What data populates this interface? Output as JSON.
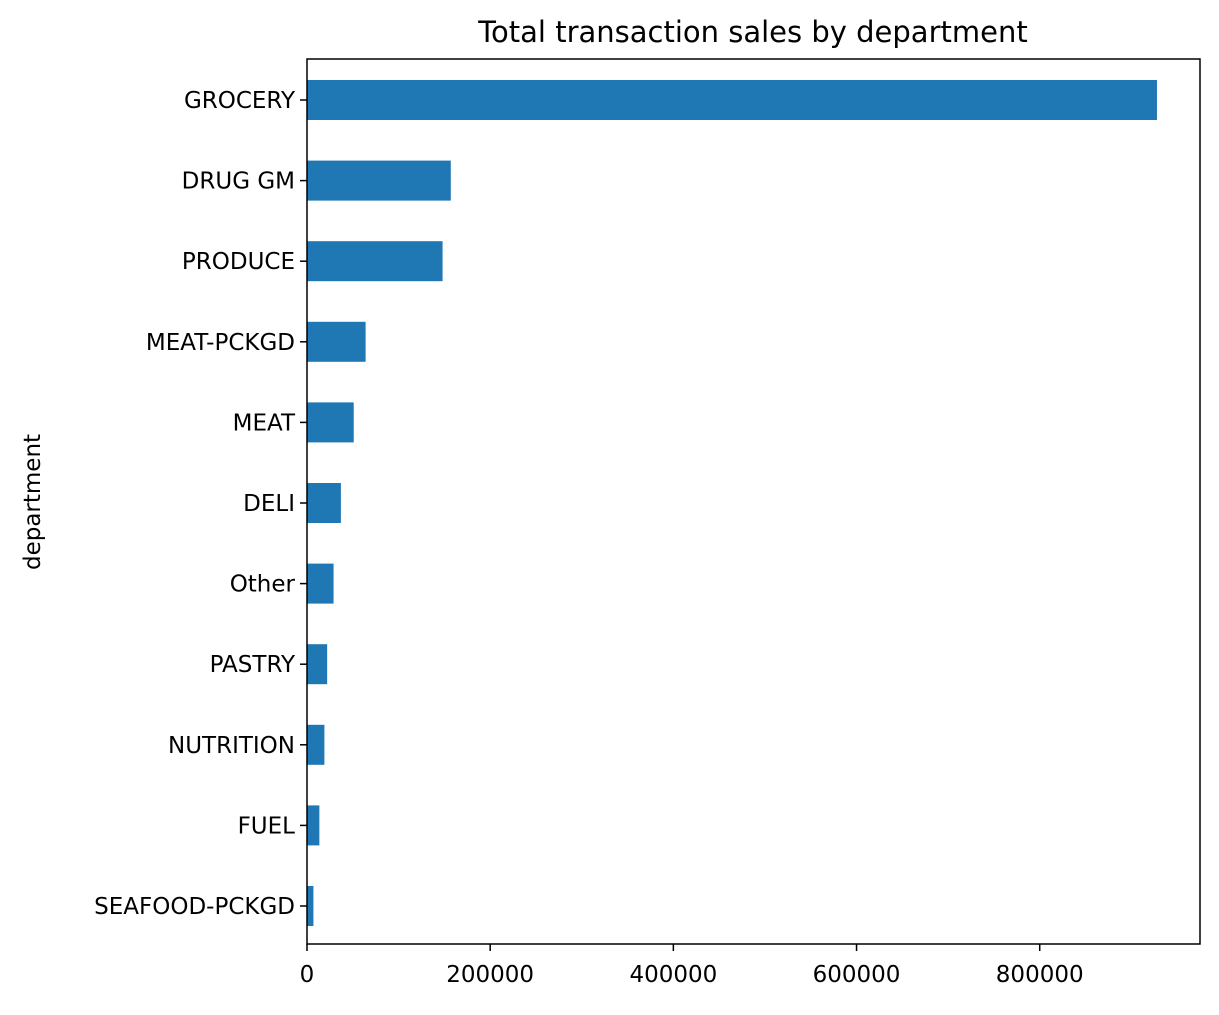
{
  "chart_data": {
    "type": "bar",
    "orientation": "horizontal",
    "title": "Total transaction sales by department",
    "xlabel": "",
    "ylabel": "department",
    "categories": [
      "GROCERY",
      "DRUG GM",
      "PRODUCE",
      "MEAT-PCKGD",
      "MEAT",
      "DELI",
      "Other",
      "PASTRY",
      "NUTRITION",
      "FUEL",
      "SEAFOOD-PCKGD"
    ],
    "values": [
      928000,
      157000,
      148000,
      64000,
      51000,
      37000,
      29000,
      22000,
      19000,
      13500,
      7000
    ],
    "xlim": [
      0,
      975000
    ],
    "xticks": [
      0,
      200000,
      400000,
      600000,
      800000
    ],
    "xtick_labels": [
      "0",
      "200000",
      "400000",
      "600000",
      "800000"
    ],
    "grid": false,
    "legend": "none",
    "bar_color": "#1f77b4"
  }
}
